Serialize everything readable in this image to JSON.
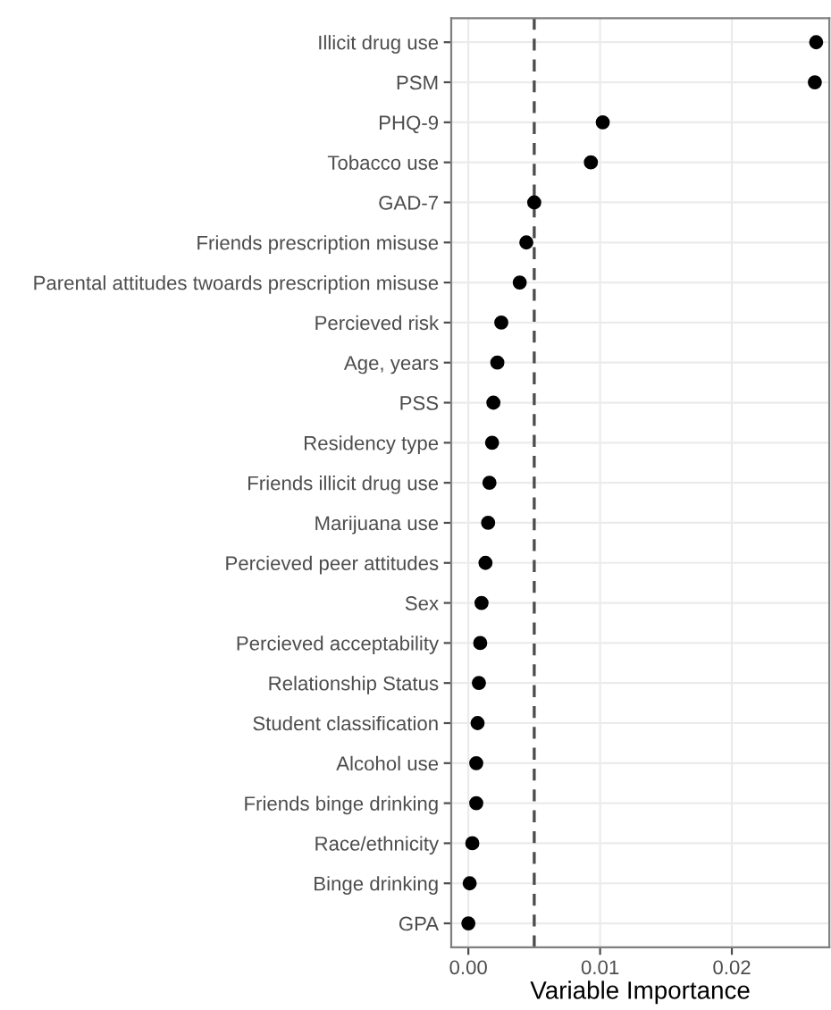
{
  "chart_data": {
    "type": "scatter",
    "xlabel": "Variable Importance",
    "orientation": "horizontal",
    "categories": [
      "Illicit drug use",
      "PSM",
      "PHQ-9",
      "Tobacco use",
      "GAD-7",
      "Friends prescription misuse",
      "Parental attitudes twoards prescription misuse",
      "Percieved risk",
      "Age, years",
      "PSS",
      "Residency type",
      "Friends illicit drug use",
      "Marijuana use",
      "Percieved peer attitudes",
      "Sex",
      "Percieved acceptability",
      "Relationship Status",
      "Student classification",
      "Alcohol use",
      "Friends binge drinking",
      "Race/ethnicity",
      "Binge drinking",
      "GPA"
    ],
    "series": [
      {
        "color": "#000000",
        "values": [
          0.0264,
          0.0263,
          0.0102,
          0.0093,
          0.005,
          0.0044,
          0.0039,
          0.0025,
          0.0022,
          0.0019,
          0.0018,
          0.0016,
          0.0015,
          0.0013,
          0.001,
          0.0009,
          0.0008,
          0.0007,
          0.0006,
          0.0006,
          0.0003,
          0.0001,
          0.0
        ]
      }
    ],
    "xlim": [
      -0.0013,
      0.0274
    ],
    "xticks": [
      {
        "value": 0,
        "label": "0.00"
      },
      {
        "value": 0.01,
        "label": "0.01"
      },
      {
        "value": 0.02,
        "label": "0.02"
      }
    ],
    "ref_lines": [
      {
        "axis": "x",
        "value": 0.005,
        "color": "#4d4d4d",
        "line_style": "dashed"
      }
    ],
    "grid": true,
    "marker": "circle"
  }
}
